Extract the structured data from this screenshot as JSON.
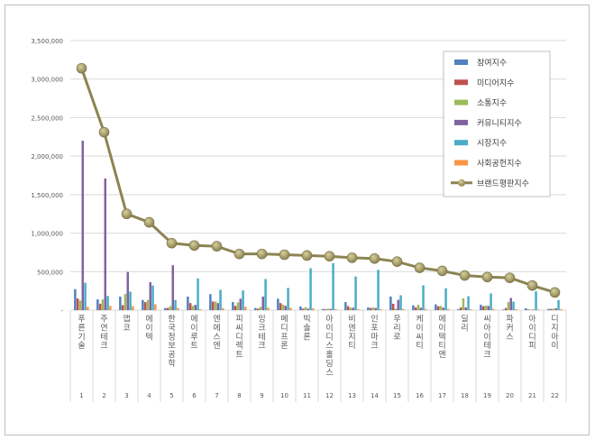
{
  "chart_data": {
    "type": "bar+line",
    "title": "",
    "xlabel": "",
    "ylabel": "",
    "ylim": [
      0,
      3500000
    ],
    "yticks": [
      "-",
      "500,000",
      "1,000,000",
      "1,500,000",
      "2,000,000",
      "2,500,000",
      "3,000,000",
      "3,500,000"
    ],
    "grid": true,
    "legend_position": "top-right",
    "categories": [
      "푸른기술",
      "주연테크",
      "앱코",
      "에이텍",
      "한국정보공학",
      "에이루트",
      "엔에스엔",
      "피씨디렉트",
      "잉크테크",
      "메디프론",
      "빅솔론",
      "아이디스홀딩스",
      "비엔지티",
      "인포마크",
      "우리로",
      "케이씨티",
      "에이텍티앤",
      "딜리",
      "씨아이테크",
      "파커스",
      "아이디피",
      "디지아이"
    ],
    "ranks": [
      "1",
      "2",
      "3",
      "4",
      "5",
      "6",
      "7",
      "8",
      "9",
      "10",
      "11",
      "12",
      "13",
      "14",
      "15",
      "16",
      "17",
      "18",
      "19",
      "20",
      "21",
      "22"
    ],
    "series": [
      {
        "name": "참여지수",
        "kind": "bar",
        "color": "#4f81bd",
        "values": [
          272000,
          140000,
          176000,
          132000,
          28000,
          176000,
          208000,
          104000,
          28000,
          148000,
          48000,
          16000,
          104000,
          36000,
          177000,
          63000,
          75000,
          12000,
          71000,
          8000,
          24000,
          16000
        ]
      },
      {
        "name": "미디어지수",
        "kind": "bar",
        "color": "#c0504d",
        "values": [
          152000,
          84000,
          64000,
          104000,
          28000,
          92000,
          112000,
          56000,
          20000,
          92000,
          20000,
          12000,
          52000,
          28000,
          83000,
          36000,
          51000,
          36000,
          51000,
          28000,
          8000,
          16000
        ]
      },
      {
        "name": "소통지수",
        "kind": "bar",
        "color": "#9bbb59",
        "values": [
          124000,
          140000,
          212000,
          132000,
          52000,
          56000,
          112000,
          100000,
          44000,
          72000,
          40000,
          20000,
          32000,
          36000,
          20000,
          71000,
          55000,
          154000,
          59000,
          106000,
          8000,
          20000
        ]
      },
      {
        "name": "커뮤니티지수",
        "kind": "bar",
        "color": "#8064a2",
        "values": [
          2200000,
          1710000,
          496000,
          364000,
          584000,
          68000,
          92000,
          148000,
          176000,
          56000,
          20000,
          16000,
          32000,
          28000,
          134000,
          32000,
          32000,
          36000,
          55000,
          158000,
          8000,
          24000
        ]
      },
      {
        "name": "시장지수",
        "kind": "bar",
        "color": "#4bacc6",
        "values": [
          356000,
          184000,
          240000,
          320000,
          132000,
          412000,
          264000,
          256000,
          404000,
          288000,
          544000,
          610000,
          437000,
          524000,
          193000,
          323000,
          284000,
          181000,
          217000,
          110000,
          244000,
          130000
        ]
      },
      {
        "name": "사회공헌지수",
        "kind": "bar",
        "color": "#f79646",
        "values": [
          44000,
          56000,
          52000,
          76000,
          28000,
          12000,
          24000,
          44000,
          32000,
          32000,
          24000,
          12000,
          12000,
          12000,
          16000,
          16000,
          16000,
          12000,
          16000,
          12000,
          8000,
          12000
        ]
      },
      {
        "name": "브랜드평판지수",
        "kind": "line",
        "color": "#8c8452",
        "values": [
          3140000,
          2310000,
          1250000,
          1140000,
          870000,
          840000,
          830000,
          730000,
          730000,
          720000,
          710000,
          700000,
          680000,
          670000,
          630000,
          550000,
          510000,
          450000,
          430000,
          420000,
          320000,
          230000
        ]
      }
    ]
  }
}
